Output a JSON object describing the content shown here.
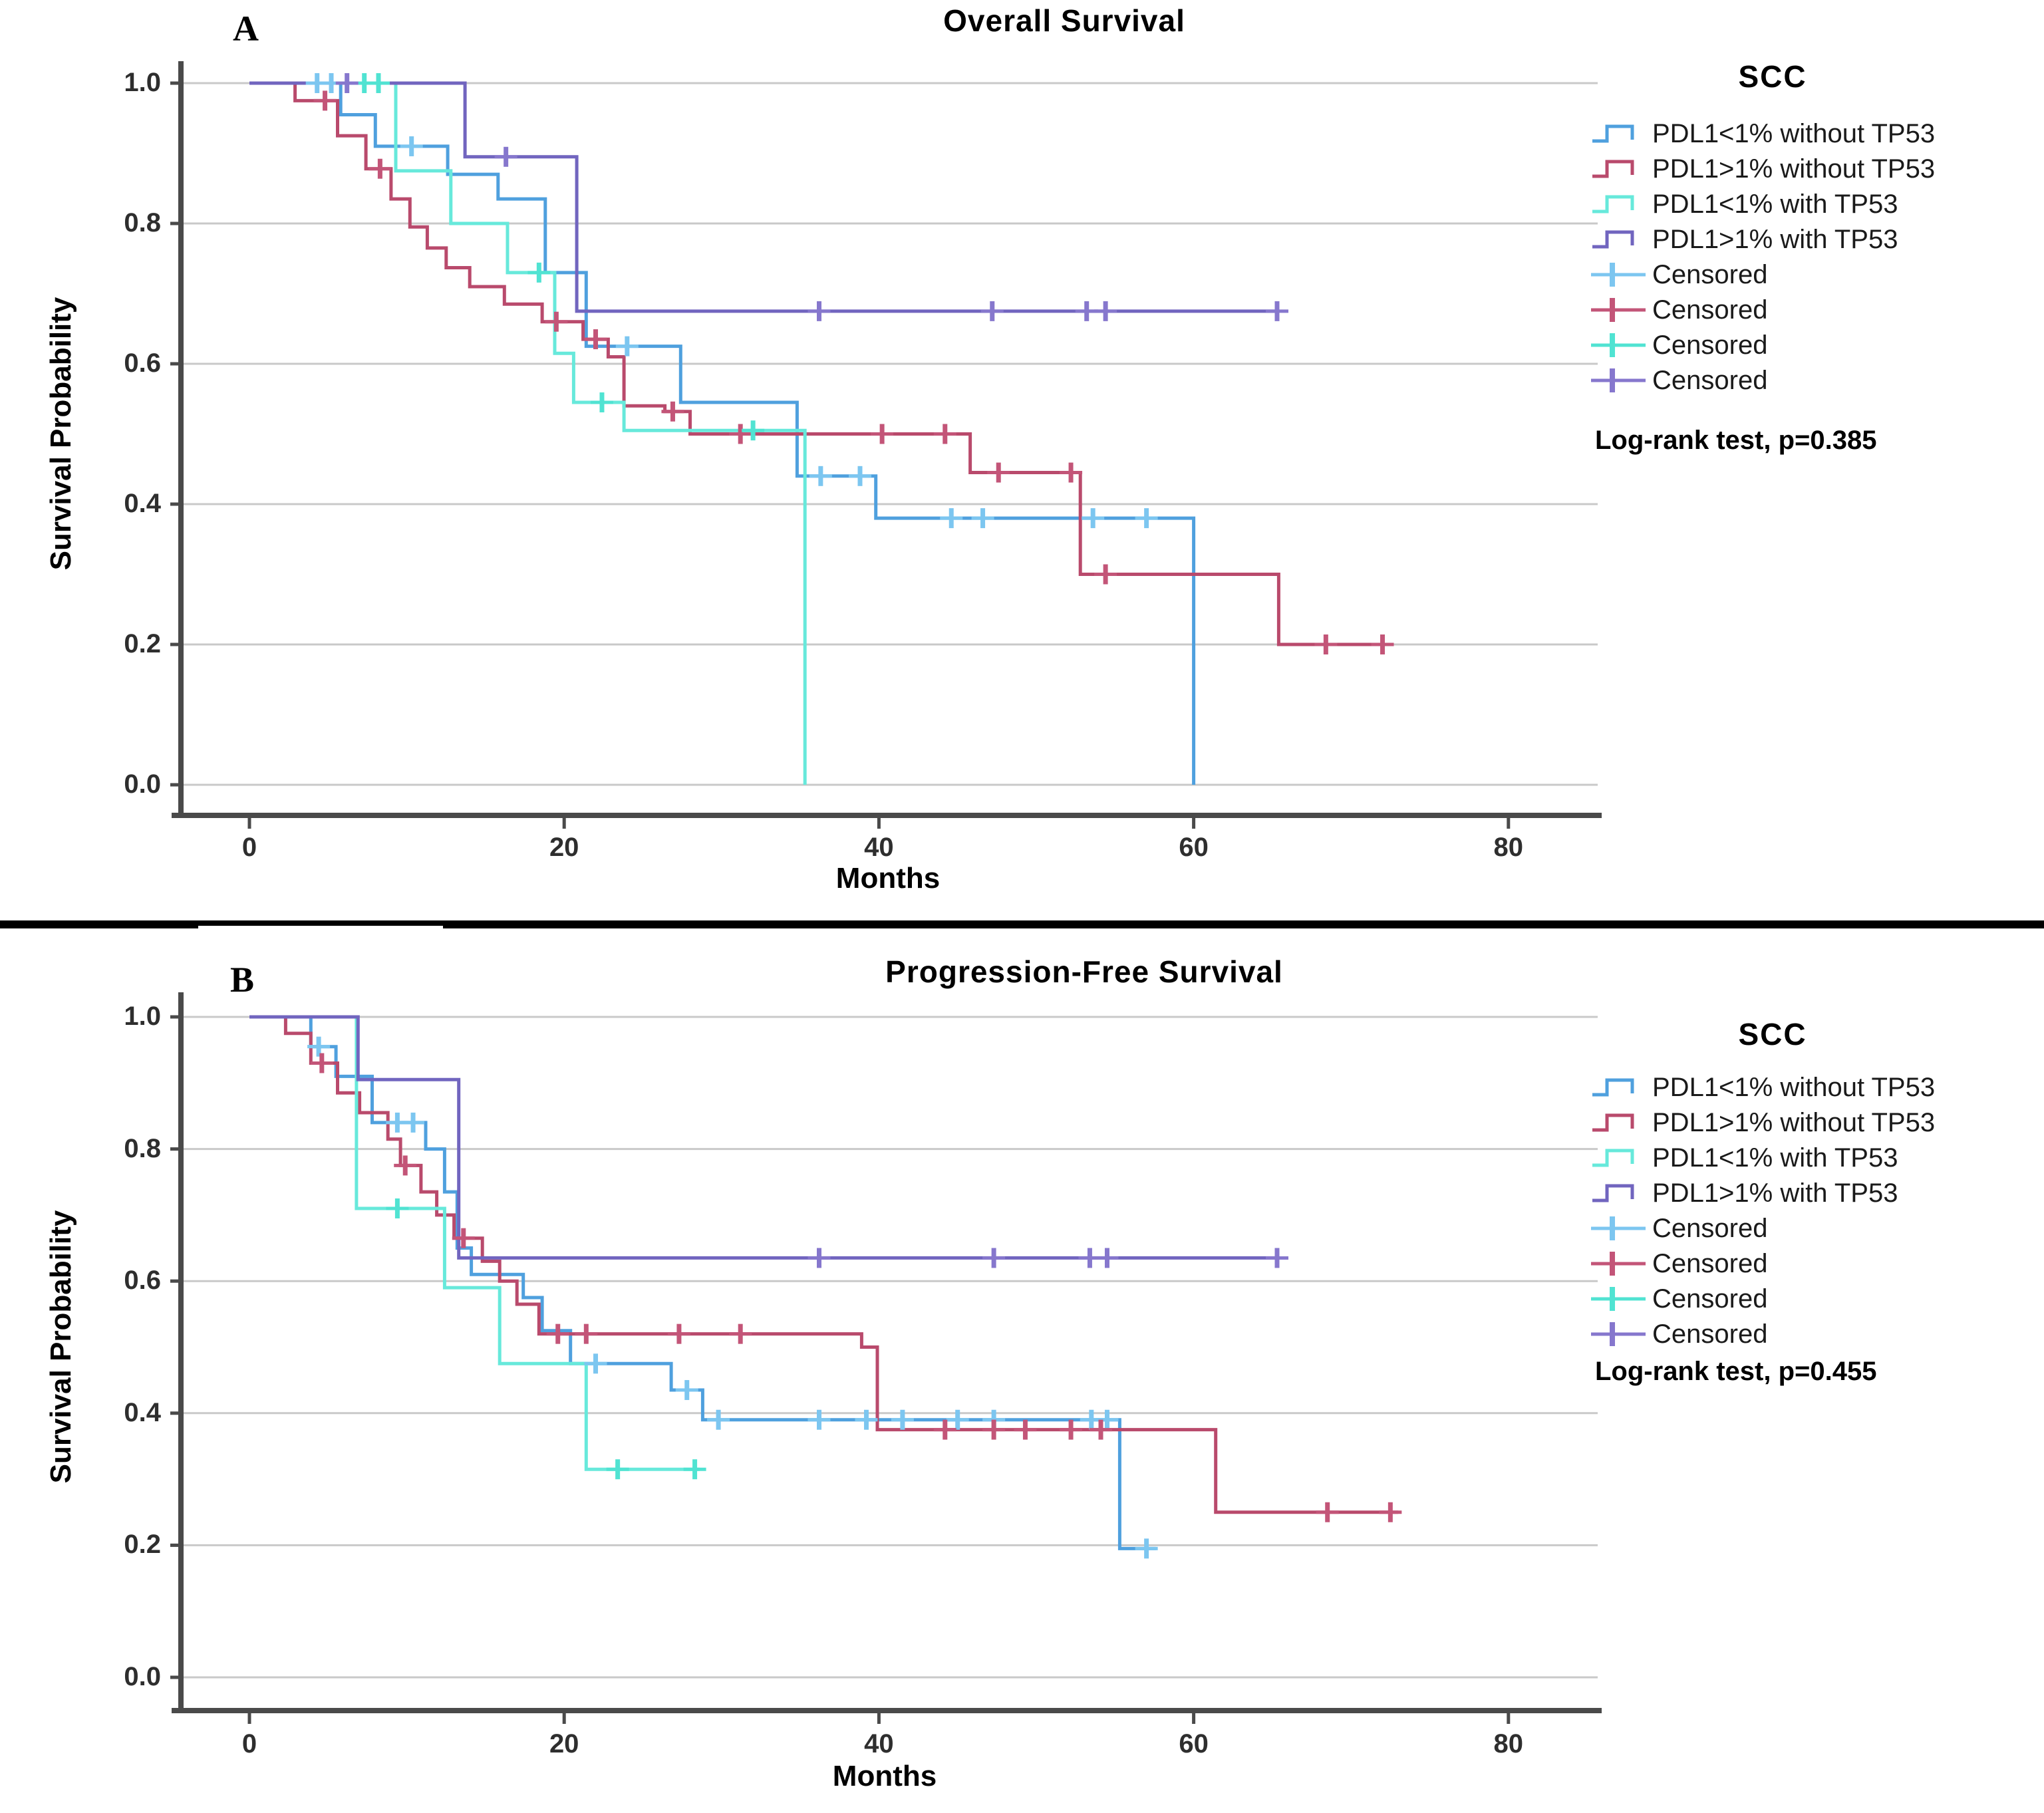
{
  "colors": {
    "grid": "#C9C9C9",
    "axis": "#4A4A4A",
    "tick_text": "#2e2e2e",
    "background": "#ffffff"
  },
  "censored_label": "Censored",
  "chart_data": [
    {
      "type": "line",
      "panel_label": "A",
      "title": "Overall Survival",
      "xlabel": "Months",
      "ylabel": "Survival Probability",
      "legend_title": "SCC",
      "stat_note": "Log-rank test, p=0.385",
      "legend_position": "right",
      "grid": true,
      "xlim": [
        0,
        80
      ],
      "ylim": [
        0.0,
        1.0
      ],
      "x_ticks": [
        0,
        20,
        40,
        60,
        80
      ],
      "y_ticks": [
        "1.0",
        "0.8",
        "0.6",
        "0.4",
        "0.2",
        "0.0"
      ],
      "series": [
        {
          "name": "PDL1<1% without TP53",
          "color": "#4FA0DE",
          "censor_color": "#7CC6F0",
          "steps": [
            [
              0,
              1.0
            ],
            [
              5.8,
              1.0
            ],
            [
              5.8,
              0.955
            ],
            [
              8,
              0.955
            ],
            [
              8,
              0.91
            ],
            [
              12.6,
              0.91
            ],
            [
              12.6,
              0.87
            ],
            [
              15.8,
              0.87
            ],
            [
              15.8,
              0.835
            ],
            [
              18.8,
              0.835
            ],
            [
              18.8,
              0.73
            ],
            [
              21.4,
              0.73
            ],
            [
              21.4,
              0.625
            ],
            [
              27.4,
              0.625
            ],
            [
              27.4,
              0.545
            ],
            [
              34.8,
              0.545
            ],
            [
              34.8,
              0.44
            ],
            [
              39.8,
              0.44
            ],
            [
              39.8,
              0.38
            ],
            [
              60,
              0.38
            ],
            [
              60,
              0.0
            ]
          ],
          "censored": [
            [
              4.3,
              1.0
            ],
            [
              5.2,
              1.0
            ],
            [
              10.3,
              0.91
            ],
            [
              24,
              0.625
            ],
            [
              36.3,
              0.44
            ],
            [
              38.8,
              0.44
            ],
            [
              44.6,
              0.38
            ],
            [
              46.6,
              0.38
            ],
            [
              53.6,
              0.38
            ],
            [
              57,
              0.38
            ]
          ]
        },
        {
          "name": "PDL1>1% without TP53",
          "color": "#B94A6C",
          "censor_color": "#C35578",
          "steps": [
            [
              0,
              1.0
            ],
            [
              2.9,
              1.0
            ],
            [
              2.9,
              0.975
            ],
            [
              5.6,
              0.975
            ],
            [
              5.6,
              0.925
            ],
            [
              7.4,
              0.925
            ],
            [
              7.4,
              0.878
            ],
            [
              9,
              0.878
            ],
            [
              9,
              0.835
            ],
            [
              10.2,
              0.835
            ],
            [
              10.2,
              0.795
            ],
            [
              11.3,
              0.795
            ],
            [
              11.3,
              0.765
            ],
            [
              12.5,
              0.765
            ],
            [
              12.5,
              0.737
            ],
            [
              14,
              0.737
            ],
            [
              14,
              0.71
            ],
            [
              16.2,
              0.71
            ],
            [
              16.2,
              0.685
            ],
            [
              18.6,
              0.685
            ],
            [
              18.6,
              0.66
            ],
            [
              21.2,
              0.66
            ],
            [
              21.2,
              0.635
            ],
            [
              22.8,
              0.635
            ],
            [
              22.8,
              0.61
            ],
            [
              23.8,
              0.61
            ],
            [
              23.8,
              0.54
            ],
            [
              26.4,
              0.54
            ],
            [
              26.4,
              0.532
            ],
            [
              28,
              0.532
            ],
            [
              28,
              0.5
            ],
            [
              45.8,
              0.5
            ],
            [
              45.8,
              0.445
            ],
            [
              52.8,
              0.445
            ],
            [
              52.8,
              0.3
            ],
            [
              65.4,
              0.3
            ],
            [
              65.4,
              0.2
            ],
            [
              72.4,
              0.2
            ]
          ],
          "censored": [
            [
              4.8,
              0.975
            ],
            [
              8.3,
              0.878
            ],
            [
              19.5,
              0.66
            ],
            [
              22,
              0.635
            ],
            [
              26.9,
              0.532
            ],
            [
              31.2,
              0.5
            ],
            [
              40.2,
              0.5
            ],
            [
              44.2,
              0.5
            ],
            [
              47.6,
              0.445
            ],
            [
              52.2,
              0.445
            ],
            [
              54.4,
              0.3
            ],
            [
              68.4,
              0.2
            ],
            [
              72,
              0.2
            ]
          ]
        },
        {
          "name": "PDL1<1% with TP53",
          "color": "#67E9DB",
          "censor_color": "#50E3D2",
          "steps": [
            [
              0,
              1.0
            ],
            [
              9.3,
              1.0
            ],
            [
              9.3,
              0.875
            ],
            [
              12.8,
              0.875
            ],
            [
              12.8,
              0.8
            ],
            [
              16.4,
              0.8
            ],
            [
              16.4,
              0.73
            ],
            [
              19.4,
              0.73
            ],
            [
              19.4,
              0.615
            ],
            [
              20.6,
              0.615
            ],
            [
              20.6,
              0.545
            ],
            [
              23.8,
              0.545
            ],
            [
              23.8,
              0.505
            ],
            [
              35.3,
              0.505
            ],
            [
              35.3,
              0.0
            ]
          ],
          "censored": [
            [
              7.3,
              1.0
            ],
            [
              8.2,
              1.0
            ],
            [
              18.4,
              0.73
            ],
            [
              22.4,
              0.545
            ],
            [
              32,
              0.505
            ]
          ]
        },
        {
          "name": "PDL1>1% with TP53",
          "color": "#7165BF",
          "censor_color": "#8677CD",
          "steps": [
            [
              0,
              1.0
            ],
            [
              13.7,
              1.0
            ],
            [
              13.7,
              0.895
            ],
            [
              20.8,
              0.895
            ],
            [
              20.8,
              0.675
            ],
            [
              65.3,
              0.675
            ]
          ],
          "censored": [
            [
              6.2,
              1.0
            ],
            [
              16.3,
              0.895
            ],
            [
              36.2,
              0.675
            ],
            [
              47.2,
              0.675
            ],
            [
              53.2,
              0.675
            ],
            [
              54.4,
              0.675
            ],
            [
              65.3,
              0.675
            ]
          ]
        }
      ]
    },
    {
      "type": "line",
      "panel_label": "B",
      "title": "Progression-Free Survival",
      "xlabel": "Months",
      "ylabel": "Survival Probability",
      "legend_title": "SCC",
      "stat_note": "Log-rank test, p=0.455",
      "legend_position": "right",
      "grid": true,
      "xlim": [
        0,
        80
      ],
      "ylim": [
        0.0,
        1.0
      ],
      "x_ticks": [
        0,
        20,
        40,
        60,
        80
      ],
      "y_ticks": [
        "1.0",
        "0.8",
        "0.6",
        "0.4",
        "0.2",
        "0.0"
      ],
      "series": [
        {
          "name": "PDL1<1% without TP53",
          "color": "#4FA0DE",
          "censor_color": "#7CC6F0",
          "steps": [
            [
              0,
              1.0
            ],
            [
              3.9,
              1.0
            ],
            [
              3.9,
              0.955
            ],
            [
              5.5,
              0.955
            ],
            [
              5.5,
              0.91
            ],
            [
              7.8,
              0.91
            ],
            [
              7.8,
              0.84
            ],
            [
              11.2,
              0.84
            ],
            [
              11.2,
              0.8
            ],
            [
              12.4,
              0.8
            ],
            [
              12.4,
              0.735
            ],
            [
              13.2,
              0.735
            ],
            [
              13.2,
              0.65
            ],
            [
              14.1,
              0.65
            ],
            [
              14.1,
              0.61
            ],
            [
              17.4,
              0.61
            ],
            [
              17.4,
              0.575
            ],
            [
              18.6,
              0.575
            ],
            [
              18.6,
              0.525
            ],
            [
              20.4,
              0.525
            ],
            [
              20.4,
              0.475
            ],
            [
              26.8,
              0.475
            ],
            [
              26.8,
              0.435
            ],
            [
              28.8,
              0.435
            ],
            [
              28.8,
              0.39
            ],
            [
              55.3,
              0.39
            ],
            [
              55.3,
              0.195
            ],
            [
              57.6,
              0.195
            ]
          ],
          "censored": [
            [
              4.4,
              0.955
            ],
            [
              9.4,
              0.84
            ],
            [
              10.4,
              0.84
            ],
            [
              22,
              0.475
            ],
            [
              27.8,
              0.435
            ],
            [
              29.8,
              0.39
            ],
            [
              36.2,
              0.39
            ],
            [
              39.2,
              0.39
            ],
            [
              41.5,
              0.39
            ],
            [
              45,
              0.39
            ],
            [
              47.3,
              0.39
            ],
            [
              53.5,
              0.39
            ],
            [
              54.5,
              0.39
            ],
            [
              57,
              0.195
            ]
          ]
        },
        {
          "name": "PDL1>1% without TP53",
          "color": "#B94A6C",
          "censor_color": "#C35578",
          "steps": [
            [
              0,
              1.0
            ],
            [
              2.3,
              1.0
            ],
            [
              2.3,
              0.975
            ],
            [
              3.9,
              0.975
            ],
            [
              3.9,
              0.93
            ],
            [
              5.6,
              0.93
            ],
            [
              5.6,
              0.885
            ],
            [
              7,
              0.885
            ],
            [
              7,
              0.855
            ],
            [
              8.8,
              0.855
            ],
            [
              8.8,
              0.815
            ],
            [
              9.6,
              0.815
            ],
            [
              9.6,
              0.775
            ],
            [
              10.9,
              0.775
            ],
            [
              10.9,
              0.735
            ],
            [
              11.9,
              0.735
            ],
            [
              11.9,
              0.7
            ],
            [
              13,
              0.7
            ],
            [
              13,
              0.665
            ],
            [
              14.8,
              0.665
            ],
            [
              14.8,
              0.63
            ],
            [
              15.9,
              0.63
            ],
            [
              15.9,
              0.6
            ],
            [
              17,
              0.6
            ],
            [
              17,
              0.565
            ],
            [
              18.4,
              0.565
            ],
            [
              18.4,
              0.52
            ],
            [
              38.9,
              0.52
            ],
            [
              38.9,
              0.5
            ],
            [
              39.9,
              0.5
            ],
            [
              39.9,
              0.375
            ],
            [
              61.4,
              0.375
            ],
            [
              61.4,
              0.25
            ],
            [
              73,
              0.25
            ]
          ],
          "censored": [
            [
              4.6,
              0.93
            ],
            [
              9.9,
              0.775
            ],
            [
              13.6,
              0.665
            ],
            [
              19.6,
              0.52
            ],
            [
              21.4,
              0.52
            ],
            [
              27.3,
              0.52
            ],
            [
              31.2,
              0.52
            ],
            [
              44.2,
              0.375
            ],
            [
              47.3,
              0.375
            ],
            [
              49.3,
              0.375
            ],
            [
              52.2,
              0.375
            ],
            [
              54.1,
              0.375
            ],
            [
              68.5,
              0.25
            ],
            [
              72.5,
              0.25
            ]
          ]
        },
        {
          "name": "PDL1<1% with TP53",
          "color": "#67E9DB",
          "censor_color": "#50E3D2",
          "steps": [
            [
              0,
              1.0
            ],
            [
              6.8,
              1.0
            ],
            [
              6.8,
              0.71
            ],
            [
              12.4,
              0.71
            ],
            [
              12.4,
              0.59
            ],
            [
              15.9,
              0.59
            ],
            [
              15.9,
              0.475
            ],
            [
              21.4,
              0.475
            ],
            [
              21.4,
              0.315
            ],
            [
              28.6,
              0.315
            ]
          ],
          "censored": [
            [
              9.4,
              0.71
            ],
            [
              23.4,
              0.315
            ],
            [
              28.3,
              0.315
            ]
          ]
        },
        {
          "name": "PDL1>1% with TP53",
          "color": "#7165BF",
          "censor_color": "#8677CD",
          "steps": [
            [
              0,
              1.0
            ],
            [
              6.9,
              1.0
            ],
            [
              6.9,
              0.905
            ],
            [
              13.3,
              0.905
            ],
            [
              13.3,
              0.635
            ],
            [
              65.3,
              0.635
            ]
          ],
          "censored": [
            [
              36.2,
              0.635
            ],
            [
              47.3,
              0.635
            ],
            [
              53.4,
              0.635
            ],
            [
              54.5,
              0.635
            ],
            [
              65.3,
              0.635
            ]
          ]
        }
      ]
    }
  ]
}
